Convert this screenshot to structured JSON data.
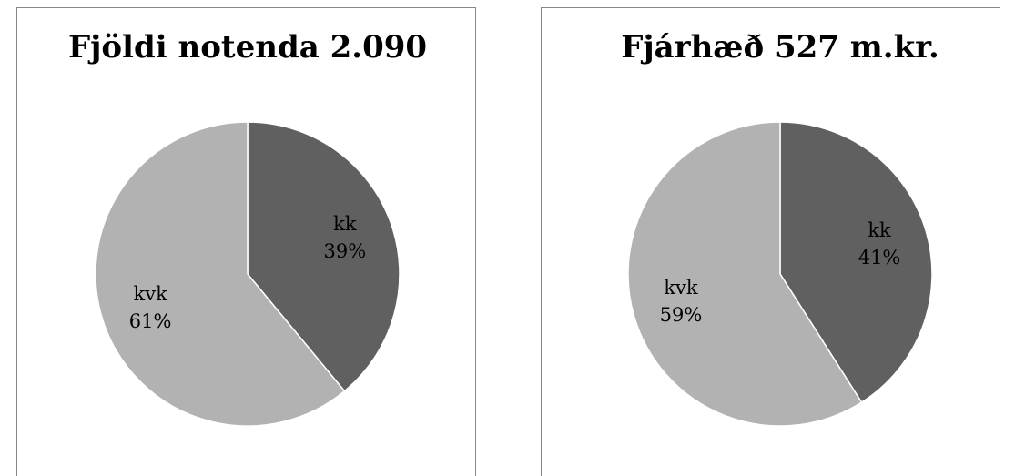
{
  "chart_data": [
    {
      "type": "pie",
      "title": "Fjöldi notenda 2.090",
      "categories": [
        "kk",
        "kvk"
      ],
      "values": [
        39,
        61
      ],
      "value_labels": [
        "39%",
        "61%"
      ],
      "colors": [
        "#606060",
        "#b2b2b2"
      ]
    },
    {
      "type": "pie",
      "title": "Fjárhæð 527 m.kr.",
      "categories": [
        "kk",
        "kvk"
      ],
      "values": [
        41,
        59
      ],
      "value_labels": [
        "41%",
        "59%"
      ],
      "colors": [
        "#606060",
        "#b2b2b2"
      ]
    }
  ]
}
